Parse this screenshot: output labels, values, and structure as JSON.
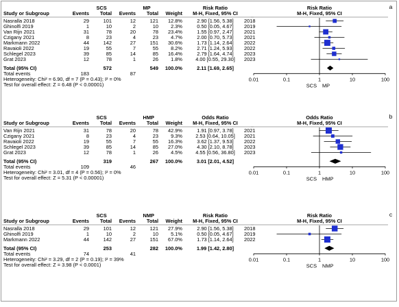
{
  "colors": {
    "box": "#1f2fd0",
    "line": "#000000",
    "rule": "#8a8a8a",
    "text": "#000000"
  },
  "chart_data": [
    {
      "type": "forest",
      "panel_label": "a",
      "headers": {
        "study": "Study or Subgroup",
        "group1": "SCS",
        "group2": "MP",
        "events": "Events",
        "total": "Total",
        "weight": "Weight",
        "effect": "Risk Ratio",
        "method": "M-H, Fixed, 95% CI",
        "plot_title": "Risk Ratio",
        "plot_method": "M-H, Fixed, 95% CI"
      },
      "studies": [
        {
          "name": "Nasralla 2018",
          "e1": "29",
          "n1": "101",
          "e2": "12",
          "n2": "121",
          "weight": "12.8%",
          "ci_text": "2.90 [1.56, 5.38]",
          "year": "2018",
          "est": 2.9,
          "lo": 1.56,
          "hi": 5.38
        },
        {
          "name": "Ghinolfi 2019",
          "e1": "1",
          "n1": "10",
          "e2": "2",
          "n2": "10",
          "weight": "2.3%",
          "ci_text": "0.50 [0.05, 4.67]",
          "year": "2019",
          "est": 0.5,
          "lo": 0.05,
          "hi": 4.67
        },
        {
          "name": "Van Rijn 2021",
          "e1": "31",
          "n1": "78",
          "e2": "20",
          "n2": "78",
          "weight": "23.4%",
          "ci_text": "1.55 [0.97, 2.47]",
          "year": "2021",
          "est": 1.55,
          "lo": 0.97,
          "hi": 2.47
        },
        {
          "name": "Czigany 2021",
          "e1": "8",
          "n1": "23",
          "e2": "4",
          "n2": "23",
          "weight": "4.7%",
          "ci_text": "2.00 [0.70, 5.73]",
          "year": "2021",
          "est": 2.0,
          "lo": 0.7,
          "hi": 5.73
        },
        {
          "name": "Markmann 2022",
          "e1": "44",
          "n1": "142",
          "e2": "27",
          "n2": "151",
          "weight": "30.6%",
          "ci_text": "1.73 [1.14, 2.64]",
          "year": "2022",
          "est": 1.73,
          "lo": 1.14,
          "hi": 2.64
        },
        {
          "name": "Ravaioli 2022",
          "e1": "19",
          "n1": "55",
          "e2": "7",
          "n2": "55",
          "weight": "8.2%",
          "ci_text": "2.71 [1.24, 5.93]",
          "year": "2022",
          "est": 2.71,
          "lo": 1.24,
          "hi": 5.93
        },
        {
          "name": "Schlegel 2023",
          "e1": "39",
          "n1": "85",
          "e2": "14",
          "n2": "85",
          "weight": "16.4%",
          "ci_text": "2.79 [1.64, 4.74]",
          "year": "2023",
          "est": 2.79,
          "lo": 1.64,
          "hi": 4.74
        },
        {
          "name": "Grat 2023",
          "e1": "12",
          "n1": "78",
          "e2": "1",
          "n2": "26",
          "weight": "1.8%",
          "ci_text": "4.00 [0.55, 29.30]",
          "year": "2023",
          "est": 4.0,
          "lo": 0.55,
          "hi": 29.3
        }
      ],
      "total": {
        "label": "Total (95% CI)",
        "n1": "572",
        "n2": "549",
        "weight": "100.0%",
        "ci_text": "2.11 [1.69, 2.65]",
        "est": 2.11,
        "lo": 1.69,
        "hi": 2.65
      },
      "total_events": {
        "label": "Total events",
        "e1": "183",
        "e2": "87"
      },
      "heterogeneity": "Heterogeneity: Chi² = 6.90, df = 7 (P = 0.43); I² = 0%",
      "overall_test": "Test for overall effect: Z = 6.48 (P < 0.00001)",
      "axis": {
        "ticks": [
          "0.01",
          "0.1",
          "1",
          "10",
          "100"
        ],
        "tick_values": [
          0.01,
          0.1,
          1,
          10,
          100
        ],
        "left_label": "SCS",
        "right_label": "MP",
        "scale": "log"
      }
    },
    {
      "type": "forest",
      "panel_label": "b",
      "headers": {
        "study": "Study or Subgroup",
        "group1": "SCS",
        "group2": "HMP",
        "events": "Events",
        "total": "Total",
        "weight": "Weight",
        "effect": "Odds Ratio",
        "method": "M-H, Fixed, 95% CI",
        "plot_title": "Odds Ratio",
        "plot_method": "M-H, Fixed, 95% CI"
      },
      "studies": [
        {
          "name": "Van Rijn 2021",
          "e1": "31",
          "n1": "78",
          "e2": "20",
          "n2": "78",
          "weight": "42.9%",
          "ci_text": "1.91 [0.97, 3.78]",
          "year": "2021",
          "est": 1.91,
          "lo": 0.97,
          "hi": 3.78
        },
        {
          "name": "Czigany 2021",
          "e1": "8",
          "n1": "23",
          "e2": "4",
          "n2": "23",
          "weight": "9.3%",
          "ci_text": "2.53 [0.64, 10.05]",
          "year": "2021",
          "est": 2.53,
          "lo": 0.64,
          "hi": 10.05
        },
        {
          "name": "Ravaioli 2022",
          "e1": "19",
          "n1": "55",
          "e2": "7",
          "n2": "55",
          "weight": "16.3%",
          "ci_text": "3.62 [1.37, 9.53]",
          "year": "2022",
          "est": 3.62,
          "lo": 1.37,
          "hi": 9.53
        },
        {
          "name": "Schlegel 2023",
          "e1": "39",
          "n1": "85",
          "e2": "14",
          "n2": "85",
          "weight": "27.0%",
          "ci_text": "4.30 [2.10, 8.78]",
          "year": "2023",
          "est": 4.3,
          "lo": 2.1,
          "hi": 8.78
        },
        {
          "name": "Grat 2023",
          "e1": "12",
          "n1": "78",
          "e2": "1",
          "n2": "26",
          "weight": "4.5%",
          "ci_text": "4.55 [0.56, 36.80]",
          "year": "2023",
          "est": 4.55,
          "lo": 0.56,
          "hi": 36.8
        }
      ],
      "total": {
        "label": "Total (95% CI)",
        "n1": "319",
        "n2": "267",
        "weight": "100.0%",
        "ci_text": "3.01 [2.01, 4.52]",
        "est": 3.01,
        "lo": 2.01,
        "hi": 4.52
      },
      "total_events": {
        "label": "Total events",
        "e1": "109",
        "e2": "46"
      },
      "heterogeneity": "Heterogeneity: Chi² = 3.01, df = 4 (P = 0.56); I² = 0%",
      "overall_test": "Test for overall effect: Z = 5.31 (P < 0.00001)",
      "axis": {
        "ticks": [
          "0.01",
          "0.1",
          "1",
          "10",
          "100"
        ],
        "tick_values": [
          0.01,
          0.1,
          1,
          10,
          100
        ],
        "left_label": "SCS",
        "right_label": "HMP",
        "scale": "log"
      }
    },
    {
      "type": "forest",
      "panel_label": "c",
      "headers": {
        "study": "Study or Subgroup",
        "group1": "SCS",
        "group2": "NMP",
        "events": "Events",
        "total": "Total",
        "weight": "Weight",
        "effect": "Risk Ratio",
        "method": "M-H, Fixed, 95% CI",
        "plot_title": "Risk Ratio",
        "plot_method": "M-H, Fixed, 95% CI"
      },
      "studies": [
        {
          "name": "Nasralla 2018",
          "e1": "29",
          "n1": "101",
          "e2": "12",
          "n2": "121",
          "weight": "27.9%",
          "ci_text": "2.90 [1.56, 5.38]",
          "year": "2018",
          "est": 2.9,
          "lo": 1.56,
          "hi": 5.38
        },
        {
          "name": "Ghinolfi 2019",
          "e1": "1",
          "n1": "10",
          "e2": "2",
          "n2": "10",
          "weight": "5.1%",
          "ci_text": "0.50 [0.05, 4.67]",
          "year": "2019",
          "est": 0.5,
          "lo": 0.05,
          "hi": 4.67
        },
        {
          "name": "Markmann 2022",
          "e1": "44",
          "n1": "142",
          "e2": "27",
          "n2": "151",
          "weight": "67.0%",
          "ci_text": "1.73 [1.14, 2.64]",
          "year": "2022",
          "est": 1.73,
          "lo": 1.14,
          "hi": 2.64
        }
      ],
      "total": {
        "label": "Total (95% CI)",
        "n1": "253",
        "n2": "282",
        "weight": "100.0%",
        "ci_text": "1.99 [1.42, 2.80]",
        "est": 1.99,
        "lo": 1.42,
        "hi": 2.8
      },
      "total_events": {
        "label": "Total events",
        "e1": "74",
        "e2": "41"
      },
      "heterogeneity": "Heterogeneity: Chi² = 3.29, df = 2 (P = 0.19); I² = 39%",
      "overall_test": "Test for overall effect: Z = 3.98 (P < 0.0001)",
      "axis": {
        "ticks": [
          "0.01",
          "0.1",
          "1",
          "10",
          "100"
        ],
        "tick_values": [
          0.01,
          0.1,
          1,
          10,
          100
        ],
        "left_label": "SCS",
        "right_label": "NMP",
        "scale": "log"
      }
    }
  ]
}
